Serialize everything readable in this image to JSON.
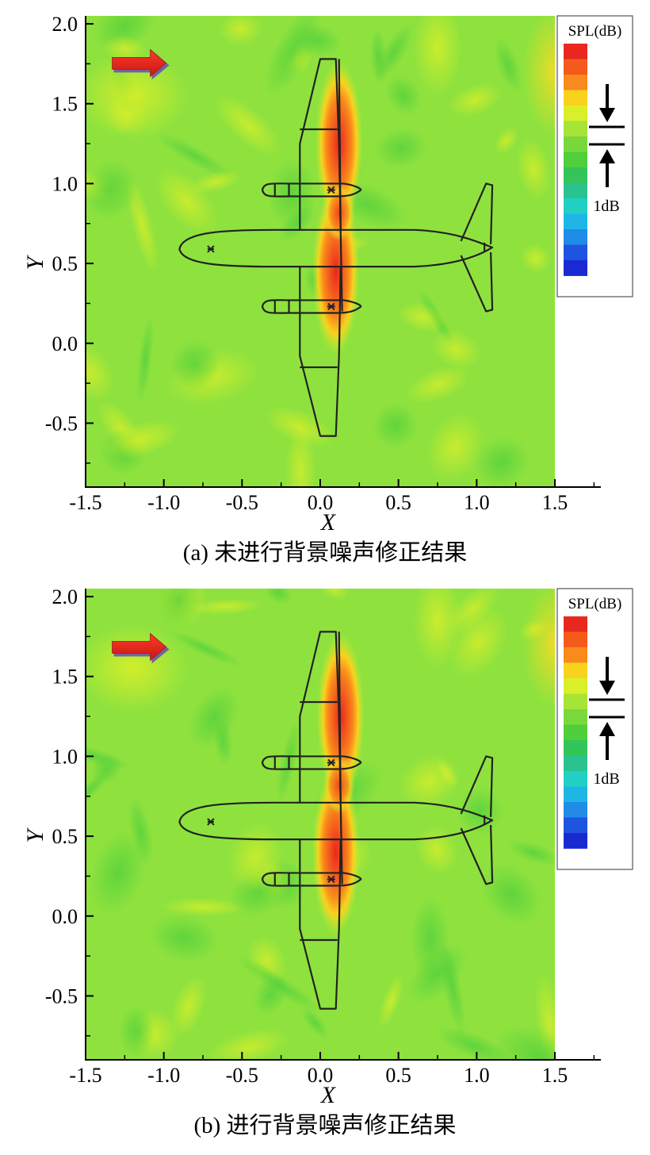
{
  "chart_data": [
    {
      "type": "heatmap",
      "caption": "(a) 未进行背景噪声修正结果",
      "xlabel": "X",
      "ylabel": "Y",
      "xlim": [
        -1.5,
        1.5
      ],
      "ylim": [
        -0.9,
        2.05
      ],
      "xticks": [
        "-1.5",
        "-1.0",
        "-0.5",
        "0.0",
        "0.5",
        "1.0",
        "1.5"
      ],
      "yticks": [
        "2.0",
        "1.5",
        "1.0",
        "0.5",
        "0.0",
        "-0.5"
      ],
      "x_tick_values": [
        -1.5,
        -1.0,
        -0.5,
        0.0,
        0.5,
        1.0,
        1.5
      ],
      "y_tick_values": [
        2.0,
        1.5,
        1.0,
        0.5,
        0.0,
        -0.5
      ],
      "legend_title": "SPL(dB)",
      "legend_scale_label": "1dB",
      "flow_direction": "+x",
      "hot_spots": [
        {
          "x": 0.12,
          "y": 1.25,
          "level": "high"
        },
        {
          "x": 0.1,
          "y": 0.45,
          "level": "high"
        }
      ]
    },
    {
      "type": "heatmap",
      "caption": "(b) 进行背景噪声修正结果",
      "xlabel": "X",
      "ylabel": "Y",
      "xlim": [
        -1.5,
        1.5
      ],
      "ylim": [
        -0.9,
        2.05
      ],
      "xticks": [
        "-1.5",
        "-1.0",
        "-0.5",
        "0.0",
        "0.5",
        "1.0",
        "1.5"
      ],
      "yticks": [
        "2.0",
        "1.5",
        "1.0",
        "0.5",
        "0.0",
        "-0.5"
      ],
      "x_tick_values": [
        -1.5,
        -1.0,
        -0.5,
        0.0,
        0.5,
        1.0,
        1.5
      ],
      "y_tick_values": [
        2.0,
        1.5,
        1.0,
        0.5,
        0.0,
        -0.5
      ],
      "legend_title": "SPL(dB)",
      "legend_scale_label": "1dB",
      "flow_direction": "+x",
      "hot_spots": [
        {
          "x": 0.13,
          "y": 1.25,
          "level": "high"
        },
        {
          "x": 0.1,
          "y": 0.4,
          "level": "high"
        }
      ]
    }
  ],
  "colors": {
    "background_field": "#8fe23e",
    "colormap": [
      "#e8281e",
      "#f45a1c",
      "#f98a1c",
      "#f9d21e",
      "#d9ef2a",
      "#a8e436",
      "#79d93c",
      "#4fcf3c",
      "#33c45a",
      "#2ac38f",
      "#22d0c3",
      "#1fb6e6",
      "#1f8ce8",
      "#1e55e0",
      "#1a2ad2"
    ],
    "flow_arrow": "#e8221c",
    "outline": "#222222"
  }
}
